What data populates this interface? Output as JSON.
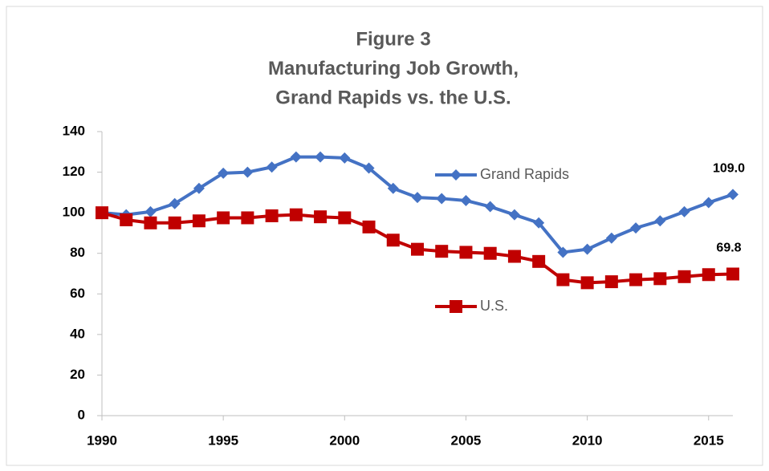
{
  "chart_data": {
    "type": "line",
    "title": [
      "Figure 3",
      "Manufacturing Job Growth,",
      "Grand Rapids vs. the U.S."
    ],
    "x": [
      1990,
      1991,
      1992,
      1993,
      1994,
      1995,
      1996,
      1997,
      1998,
      1999,
      2000,
      2001,
      2002,
      2003,
      2004,
      2005,
      2006,
      2007,
      2008,
      2009,
      2010,
      2011,
      2012,
      2013,
      2014,
      2015,
      2016
    ],
    "series": [
      {
        "name": "Grand Rapids",
        "color": "#4472c4",
        "marker": "diamond",
        "values": [
          100,
          99,
          100.5,
          104.5,
          112,
          119.5,
          120,
          122.5,
          127.5,
          127.5,
          127,
          122,
          112,
          107.5,
          107,
          106,
          103,
          99,
          95,
          80.5,
          82,
          87.5,
          92.5,
          96,
          100.5,
          105,
          109.0
        ],
        "value_labels": [
          null,
          null,
          null,
          null,
          null,
          null,
          null,
          null,
          null,
          null,
          null,
          null,
          null,
          null,
          null,
          null,
          null,
          null,
          null,
          null,
          null,
          null,
          null,
          null,
          null,
          null,
          "109.0"
        ]
      },
      {
        "name": "U.S.",
        "color": "#c00000",
        "marker": "square",
        "values": [
          100,
          96.5,
          95,
          95,
          96,
          97.5,
          97.5,
          98.5,
          99,
          98,
          97.5,
          93,
          86.5,
          82,
          81,
          80.5,
          80,
          78.5,
          76,
          67,
          65.5,
          66,
          67,
          67.5,
          68.5,
          69.5,
          69.8
        ]
      }
    ],
    "xlim": [
      1990,
      2016
    ],
    "xticks": [
      1990,
      1995,
      2000,
      2005,
      2010,
      2015
    ],
    "ylim": [
      0,
      140
    ],
    "yticks": [
      0,
      20,
      40,
      60,
      80,
      100,
      120,
      140
    ]
  }
}
